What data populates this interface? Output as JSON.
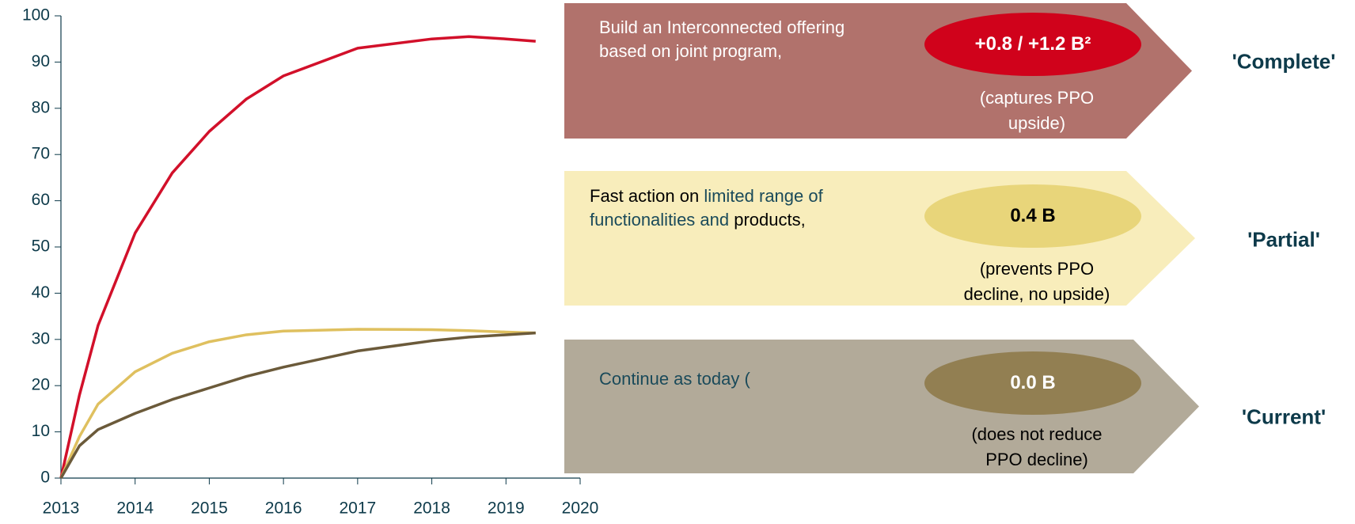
{
  "chart_data": {
    "type": "line",
    "x": [
      2013,
      2013.25,
      2013.5,
      2014,
      2014.5,
      2015,
      2015.5,
      2016,
      2017,
      2018,
      2018.5,
      2019,
      2019.4
    ],
    "series": [
      {
        "color": "#d2102a",
        "values": [
          0,
          18,
          33,
          53,
          66,
          75,
          82,
          87,
          93,
          95,
          95.5,
          95,
          94.5
        ]
      },
      {
        "color": "#dfc05f",
        "values": [
          0,
          9,
          16,
          23,
          27,
          29.5,
          31,
          31.8,
          32.2,
          32.1,
          31.9,
          31.6,
          31.4
        ]
      },
      {
        "color": "#6b5a3a",
        "values": [
          0,
          7,
          10.5,
          14,
          17,
          19.5,
          22,
          24,
          27.5,
          29.7,
          30.5,
          31,
          31.4
        ]
      }
    ],
    "xlim": [
      2013,
      2020
    ],
    "xticks": [
      2013,
      2014,
      2015,
      2016,
      2017,
      2018,
      2019,
      2020
    ],
    "ylim": [
      0,
      100
    ],
    "yticks": [
      0,
      10,
      20,
      30,
      40,
      50,
      60,
      70,
      80,
      90,
      100
    ]
  },
  "panels": [
    {
      "fill": "#b1726c",
      "text": [
        {
          "text": "Build an Interconnected offering based on joint program,",
          "color": "#ffffff"
        }
      ],
      "badge": "+0.8 / +1.2 B²",
      "badge_fill": "#d0021b",
      "badge_color": "#ffffff",
      "note": "(captures PPO upside)",
      "note_color": "#ffffff",
      "label": "'Complete'"
    },
    {
      "fill": "#f8edbb",
      "text": [
        {
          "text": "Fast action on ",
          "color": "#000000"
        },
        {
          "text": "limited range of functionalities and",
          "color": "#1a4a5a"
        },
        {
          "text": " products,",
          "color": "#000000"
        }
      ],
      "badge": "0.4 B",
      "badge_fill": "#e8d57a",
      "badge_color": "#000000",
      "note": "(prevents PPO decline, no upside)",
      "note_color": "#000000",
      "label": "'Partial'"
    },
    {
      "fill": "#b2aa99",
      "text": [
        {
          "text": "Continue as today (",
          "color": "#1a4a5a"
        }
      ],
      "badge": "0.0 B",
      "badge_fill": "#927f52",
      "badge_color": "#ffffff",
      "note": "(does not reduce PPO decline)",
      "note_color": "#000000",
      "label": "'Current'"
    }
  ]
}
